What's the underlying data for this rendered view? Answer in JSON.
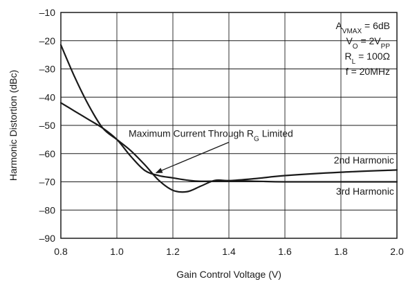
{
  "chart_data": {
    "type": "line",
    "xlabel": "Gain Control Voltage (V)",
    "ylabel": "Harmonic Distortion (dBc)",
    "xlim": [
      0.8,
      2.0
    ],
    "ylim": [
      -90,
      -10
    ],
    "grid": true,
    "x_ticks": [
      {
        "value": 0.8,
        "label": "0.8"
      },
      {
        "value": 1.0,
        "label": "1.0"
      },
      {
        "value": 1.2,
        "label": "1.2"
      },
      {
        "value": 1.4,
        "label": "1.4"
      },
      {
        "value": 1.6,
        "label": "1.6"
      },
      {
        "value": 1.8,
        "label": "1.8"
      },
      {
        "value": 2.0,
        "label": "2.0"
      }
    ],
    "y_ticks": [
      {
        "value": -10,
        "label": "–10"
      },
      {
        "value": -20,
        "label": "–20"
      },
      {
        "value": -30,
        "label": "–30"
      },
      {
        "value": -40,
        "label": "–40"
      },
      {
        "value": -50,
        "label": "–50"
      },
      {
        "value": -60,
        "label": "–60"
      },
      {
        "value": -70,
        "label": "–70"
      },
      {
        "value": -80,
        "label": "–80"
      },
      {
        "value": -90,
        "label": "–90"
      }
    ],
    "series": [
      {
        "name": "2nd Harmonic",
        "x": [
          0.8,
          0.85,
          0.9,
          0.95,
          1.0,
          1.05,
          1.1,
          1.15,
          1.2,
          1.25,
          1.3,
          1.4,
          1.5,
          1.6,
          1.8,
          2.0
        ],
        "y": [
          -42,
          -45,
          -48,
          -51,
          -55,
          -61,
          -66,
          -67.8,
          -68.6,
          -69.4,
          -69.8,
          -69.6,
          -68.8,
          -67.8,
          -66.6,
          -65.8
        ]
      },
      {
        "name": "3rd Harmonic",
        "x": [
          0.8,
          0.85,
          0.9,
          0.95,
          1.0,
          1.05,
          1.1,
          1.15,
          1.2,
          1.25,
          1.3,
          1.35,
          1.4,
          1.5,
          1.6,
          1.8,
          2.0
        ],
        "y": [
          -21.5,
          -33,
          -43,
          -51,
          -55,
          -59,
          -64,
          -69.5,
          -73,
          -73.5,
          -71.5,
          -69.5,
          -69.6,
          -69.8,
          -70.0,
          -70.0,
          -70.0
        ]
      }
    ],
    "conditions": [
      {
        "main": "A",
        "sub": "VMAX",
        "rest": " = 6dB"
      },
      {
        "main": "V",
        "sub": "O",
        "rest": " = 2V",
        "sub2": "PP"
      },
      {
        "main": "R",
        "sub": "L",
        "rest": " = 100Ω"
      },
      {
        "main": "f = 20MHz",
        "sub": "",
        "rest": ""
      }
    ],
    "annotation": {
      "text": "Maximum Current Through R",
      "sub": "G",
      "rest": " Limited",
      "arrow_from": [
        1.4,
        -55
      ],
      "arrow_to": [
        1.14,
        -66.8
      ]
    },
    "series_labels": [
      {
        "name": "2nd Harmonic",
        "x": 1.99,
        "y": -63.5
      },
      {
        "name": "3rd Harmonic",
        "x": 1.99,
        "y": -74.5
      }
    ]
  }
}
